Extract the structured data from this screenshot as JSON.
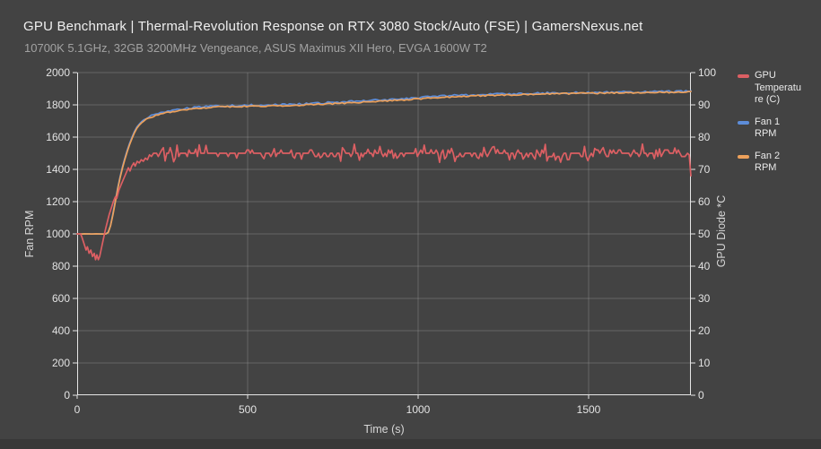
{
  "page": {
    "colors": {
      "background": "#434343",
      "footer_strip": "#383838",
      "grid": "#8a8a8a",
      "axis": "#e6e6e6",
      "title_text": "#efefef",
      "subtitle_text": "#a2a2a2",
      "tick_text": "#e3e3e3"
    }
  },
  "chart_data": {
    "type": "line",
    "title": "GPU Benchmark | Thermal-Revolution Response on RTX 3080 Stock/Auto (FSE) | GamersNexus.net",
    "subtitle": "10700K 5.1GHz, 32GB 3200MHz Vengeance, ASUS Maximus XII Hero, EVGA 1600W T2",
    "xlabel": "Time (s)",
    "ylabel_left": "Fan RPM",
    "ylabel_right": "GPU Diode *C",
    "x_range": [
      0,
      1800
    ],
    "x_ticks": [
      0,
      500,
      1000,
      1500
    ],
    "y_left_range": [
      0,
      2000
    ],
    "y_left_ticks": [
      0,
      200,
      400,
      600,
      800,
      1000,
      1200,
      1400,
      1600,
      1800,
      2000
    ],
    "y_right_range": [
      0,
      100
    ],
    "y_right_ticks": [
      0,
      10,
      20,
      30,
      40,
      50,
      60,
      70,
      80,
      90,
      100
    ],
    "grid": true,
    "legend_position": "right",
    "series": [
      {
        "name": "GPU Temperature (C)",
        "axis": "right",
        "color": "#dc5f63",
        "parts": [
          {
            "points": [
              [
                0,
                50
              ],
              [
                10,
                50
              ],
              [
                14,
                49
              ],
              [
                20,
                47
              ],
              [
                26,
                45
              ],
              [
                30,
                46
              ],
              [
                35,
                44
              ],
              [
                40,
                45
              ],
              [
                45,
                43
              ],
              [
                50,
                44
              ],
              [
                54,
                42
              ],
              [
                58,
                43.5
              ],
              [
                62,
                42
              ],
              [
                66,
                43
              ],
              [
                70,
                45
              ],
              [
                76,
                48
              ],
              [
                82,
                51
              ],
              [
                88,
                53.5
              ],
              [
                94,
                56
              ],
              [
                100,
                58
              ],
              [
                106,
                60
              ],
              [
                112,
                61.5
              ],
              [
                116,
                61
              ],
              [
                122,
                63.5
              ],
              [
                128,
                65
              ],
              [
                134,
                66.5
              ],
              [
                140,
                68
              ],
              [
                146,
                69.5
              ],
              [
                150,
                70.5
              ],
              [
                155,
                69.5
              ],
              [
                160,
                71
              ],
              [
                166,
                72
              ],
              [
                170,
                71
              ],
              [
                176,
                72.5
              ],
              [
                182,
                72
              ],
              [
                188,
                73
              ],
              [
                194,
                72.5
              ],
              [
                200,
                73.5
              ],
              [
                206,
                73
              ],
              [
                212,
                74.5
              ],
              [
                218,
                74
              ],
              [
                224,
                75
              ]
            ]
          },
          {
            "noise": {
              "from": 228,
              "to": 1786,
              "step": 5,
              "base": 75,
              "min": 72,
              "max": 78
            }
          },
          {
            "points": [
              [
                1790,
                75
              ],
              [
                1795,
                74.5
              ],
              [
                1800,
                68
              ]
            ]
          }
        ]
      },
      {
        "name": "Fan 1 RPM",
        "axis": "left",
        "color": "#5d8dd9",
        "jitter": {
          "step": 7,
          "amp": 6,
          "from": 200
        },
        "parts": [
          {
            "points": [
              [
                0,
                1000
              ],
              [
                88,
                1000
              ],
              [
                96,
                1030
              ],
              [
                105,
                1128
              ],
              [
                115,
                1243
              ],
              [
                125,
                1348
              ],
              [
                135,
                1433
              ],
              [
                145,
                1508
              ],
              [
                155,
                1568
              ],
              [
                165,
                1622
              ],
              [
                175,
                1662
              ],
              [
                185,
                1689
              ],
              [
                195,
                1707
              ],
              [
                210,
                1725
              ],
              [
                225,
                1737
              ],
              [
                240,
                1747
              ],
              [
                260,
                1757
              ],
              [
                280,
                1765
              ],
              [
                300,
                1772
              ],
              [
                330,
                1780
              ],
              [
                360,
                1786
              ],
              [
                400,
                1792
              ],
              [
                440,
                1795
              ],
              [
                480,
                1796
              ],
              [
                520,
                1798
              ],
              [
                560,
                1799
              ],
              [
                600,
                1801
              ],
              [
                650,
                1804
              ],
              [
                700,
                1810
              ],
              [
                750,
                1814
              ],
              [
                800,
                1820
              ],
              [
                850,
                1825
              ],
              [
                900,
                1831
              ],
              [
                950,
                1837
              ],
              [
                1000,
                1844
              ],
              [
                1050,
                1851
              ],
              [
                1100,
                1857
              ],
              [
                1150,
                1861
              ],
              [
                1200,
                1864
              ],
              [
                1250,
                1867
              ],
              [
                1300,
                1870
              ],
              [
                1350,
                1872
              ],
              [
                1400,
                1874
              ],
              [
                1450,
                1875
              ],
              [
                1500,
                1877
              ],
              [
                1550,
                1878
              ],
              [
                1600,
                1879
              ],
              [
                1650,
                1880
              ],
              [
                1700,
                1881
              ],
              [
                1750,
                1882
              ],
              [
                1780,
                1883
              ],
              [
                1800,
                1888
              ]
            ]
          }
        ]
      },
      {
        "name": "Fan 2 RPM",
        "axis": "left",
        "color": "#eda15b",
        "jitter": {
          "step": 7,
          "amp": 4,
          "from": 200
        },
        "parts": [
          {
            "points": [
              [
                0,
                1000
              ],
              [
                88,
                1000
              ],
              [
                95,
                1020
              ],
              [
                105,
                1120
              ],
              [
                115,
                1235
              ],
              [
                125,
                1340
              ],
              [
                135,
                1425
              ],
              [
                145,
                1500
              ],
              [
                155,
                1560
              ],
              [
                165,
                1615
              ],
              [
                175,
                1655
              ],
              [
                185,
                1682
              ],
              [
                195,
                1700
              ],
              [
                210,
                1718
              ],
              [
                225,
                1730
              ],
              [
                240,
                1740
              ],
              [
                260,
                1750
              ],
              [
                280,
                1758
              ],
              [
                300,
                1766
              ],
              [
                330,
                1774
              ],
              [
                360,
                1780
              ],
              [
                400,
                1786
              ],
              [
                440,
                1789
              ],
              [
                480,
                1790
              ],
              [
                520,
                1792
              ],
              [
                560,
                1793
              ],
              [
                600,
                1795
              ],
              [
                650,
                1798
              ],
              [
                700,
                1803
              ],
              [
                750,
                1807
              ],
              [
                800,
                1813
              ],
              [
                850,
                1818
              ],
              [
                900,
                1824
              ],
              [
                950,
                1830
              ],
              [
                1000,
                1837
              ],
              [
                1050,
                1844
              ],
              [
                1100,
                1850
              ],
              [
                1150,
                1855
              ],
              [
                1200,
                1858
              ],
              [
                1250,
                1861
              ],
              [
                1300,
                1864
              ],
              [
                1350,
                1866
              ],
              [
                1400,
                1869
              ],
              [
                1450,
                1870
              ],
              [
                1500,
                1872
              ],
              [
                1550,
                1873
              ],
              [
                1600,
                1875
              ],
              [
                1650,
                1876
              ],
              [
                1700,
                1877
              ],
              [
                1750,
                1878
              ],
              [
                1780,
                1879
              ],
              [
                1800,
                1884
              ]
            ]
          }
        ]
      }
    ]
  }
}
